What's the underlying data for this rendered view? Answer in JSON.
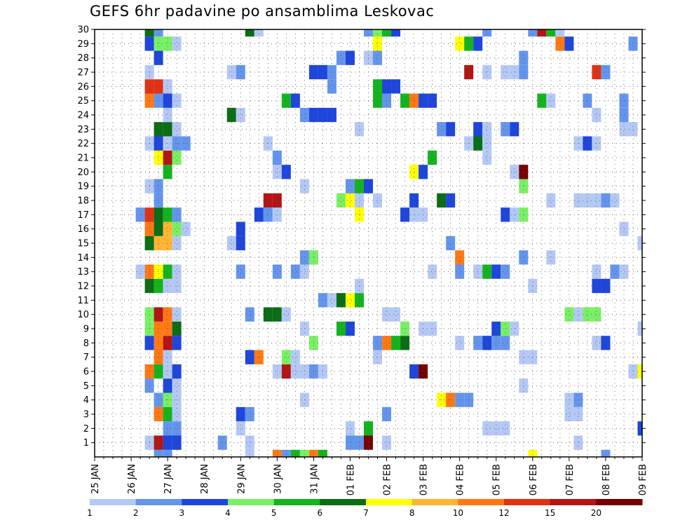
{
  "chart_data": {
    "type": "heatmap",
    "title": "GEFS 6hr padavine po ansamblima Leskovac",
    "xlabel": "",
    "ylabel": "",
    "x_ticks": [
      "25 JAN",
      "26 JAN",
      "27 JAN",
      "28 JAN",
      "29 JAN",
      "30 JAN",
      "31 JAN",
      "01 FEB",
      "02 FEB",
      "03 FEB",
      "04 FEB",
      "05 FEB",
      "06 FEB",
      "07 FEB",
      "08 FEB",
      "09 FEB"
    ],
    "y_ticks": [
      1,
      2,
      3,
      4,
      5,
      6,
      7,
      8,
      9,
      10,
      11,
      12,
      13,
      14,
      15,
      16,
      17,
      18,
      19,
      20,
      21,
      22,
      23,
      24,
      25,
      26,
      27,
      28,
      29,
      30
    ],
    "xlim_steps": [
      0,
      60
    ],
    "ylim": [
      0,
      30
    ],
    "grid": true,
    "colorbar": {
      "thresholds": [
        1,
        2,
        3,
        4,
        5,
        6,
        7,
        8,
        10,
        12,
        15,
        20
      ],
      "labels": [
        "1",
        "2",
        "3",
        "4",
        "5",
        "6",
        "7",
        "8",
        "10",
        "12",
        "15",
        "20"
      ],
      "colors": [
        "#b4c8f5",
        "#6495ed",
        "#1e46dc",
        "#78f064",
        "#14b41e",
        "#0a6e14",
        "#ffff00",
        "#ffb432",
        "#ff7814",
        "#e13214",
        "#b41414",
        "#780000"
      ]
    },
    "cells_note": "each cell is [time step (6h steps from 25 JAN 00Z), member, color class 1-12]",
    "cells": [
      [
        6,
        1,
        1
      ],
      [
        7,
        1,
        11
      ],
      [
        8,
        1,
        3
      ],
      [
        9,
        1,
        3
      ],
      [
        14,
        1,
        2
      ],
      [
        17,
        1,
        1
      ],
      [
        28,
        1,
        2
      ],
      [
        29,
        1,
        2
      ],
      [
        30,
        1,
        12
      ],
      [
        32,
        1,
        1
      ],
      [
        53,
        1,
        1
      ],
      [
        8,
        2,
        2
      ],
      [
        9,
        2,
        2
      ],
      [
        16,
        2,
        1
      ],
      [
        28,
        2,
        1
      ],
      [
        30,
        2,
        5
      ],
      [
        43,
        2,
        1
      ],
      [
        44,
        2,
        1
      ],
      [
        45,
        2,
        1
      ],
      [
        60,
        2,
        3
      ],
      [
        7,
        3,
        9
      ],
      [
        8,
        3,
        5
      ],
      [
        9,
        3,
        1
      ],
      [
        16,
        3,
        3
      ],
      [
        17,
        3,
        2
      ],
      [
        32,
        3,
        2
      ],
      [
        52,
        3,
        1
      ],
      [
        53,
        3,
        1
      ],
      [
        7,
        4,
        2
      ],
      [
        8,
        4,
        4
      ],
      [
        9,
        4,
        1
      ],
      [
        23,
        4,
        1
      ],
      [
        38,
        4,
        7
      ],
      [
        39,
        4,
        9
      ],
      [
        40,
        4,
        2
      ],
      [
        41,
        4,
        2
      ],
      [
        52,
        4,
        1
      ],
      [
        53,
        4,
        2
      ],
      [
        6,
        5,
        2
      ],
      [
        8,
        5,
        3
      ],
      [
        9,
        5,
        1
      ],
      [
        47,
        5,
        1
      ],
      [
        6,
        6,
        9
      ],
      [
        7,
        6,
        5
      ],
      [
        8,
        6,
        1
      ],
      [
        9,
        6,
        3
      ],
      [
        20,
        6,
        1
      ],
      [
        21,
        6,
        11
      ],
      [
        22,
        6,
        1
      ],
      [
        23,
        6,
        1
      ],
      [
        24,
        6,
        2
      ],
      [
        25,
        6,
        1
      ],
      [
        35,
        6,
        3
      ],
      [
        36,
        6,
        12
      ],
      [
        59,
        6,
        1
      ],
      [
        60,
        6,
        7
      ],
      [
        7,
        7,
        9
      ],
      [
        8,
        7,
        1
      ],
      [
        17,
        7,
        3
      ],
      [
        18,
        7,
        9
      ],
      [
        21,
        7,
        4
      ],
      [
        22,
        7,
        1
      ],
      [
        31,
        7,
        1
      ],
      [
        47,
        7,
        1
      ],
      [
        48,
        7,
        1
      ],
      [
        6,
        8,
        3
      ],
      [
        7,
        8,
        9
      ],
      [
        8,
        8,
        11
      ],
      [
        9,
        8,
        3
      ],
      [
        24,
        8,
        4
      ],
      [
        31,
        8,
        2
      ],
      [
        32,
        8,
        9
      ],
      [
        33,
        8,
        5
      ],
      [
        34,
        8,
        6
      ],
      [
        40,
        8,
        1
      ],
      [
        42,
        8,
        2
      ],
      [
        43,
        8,
        3
      ],
      [
        44,
        8,
        2
      ],
      [
        45,
        8,
        2
      ],
      [
        55,
        8,
        1
      ],
      [
        56,
        8,
        3
      ],
      [
        6,
        9,
        4
      ],
      [
        7,
        9,
        9
      ],
      [
        8,
        9,
        9
      ],
      [
        9,
        9,
        6
      ],
      [
        23,
        9,
        1
      ],
      [
        27,
        9,
        5
      ],
      [
        28,
        9,
        3
      ],
      [
        34,
        9,
        4
      ],
      [
        36,
        9,
        1
      ],
      [
        37,
        9,
        1
      ],
      [
        44,
        9,
        3
      ],
      [
        45,
        9,
        4
      ],
      [
        46,
        9,
        1
      ],
      [
        60,
        9,
        1
      ],
      [
        6,
        10,
        4
      ],
      [
        7,
        10,
        11
      ],
      [
        8,
        10,
        9
      ],
      [
        9,
        10,
        1
      ],
      [
        17,
        10,
        2
      ],
      [
        19,
        10,
        6
      ],
      [
        20,
        10,
        6
      ],
      [
        21,
        10,
        1
      ],
      [
        32,
        10,
        1
      ],
      [
        33,
        10,
        1
      ],
      [
        52,
        10,
        4
      ],
      [
        53,
        10,
        1
      ],
      [
        54,
        10,
        4
      ],
      [
        55,
        10,
        4
      ],
      [
        25,
        11,
        2
      ],
      [
        26,
        11,
        1
      ],
      [
        27,
        11,
        6
      ],
      [
        28,
        11,
        7
      ],
      [
        29,
        11,
        5
      ],
      [
        6,
        12,
        6
      ],
      [
        7,
        12,
        5
      ],
      [
        8,
        12,
        1
      ],
      [
        9,
        12,
        1
      ],
      [
        29,
        12,
        1
      ],
      [
        48,
        12,
        1
      ],
      [
        55,
        12,
        3
      ],
      [
        56,
        12,
        3
      ],
      [
        5,
        13,
        1
      ],
      [
        6,
        13,
        9
      ],
      [
        7,
        13,
        7
      ],
      [
        8,
        13,
        5
      ],
      [
        9,
        13,
        1
      ],
      [
        16,
        13,
        2
      ],
      [
        20,
        13,
        2
      ],
      [
        22,
        13,
        2
      ],
      [
        23,
        13,
        1
      ],
      [
        37,
        13,
        1
      ],
      [
        40,
        13,
        2
      ],
      [
        42,
        13,
        1
      ],
      [
        43,
        13,
        5
      ],
      [
        44,
        13,
        3
      ],
      [
        45,
        13,
        2
      ],
      [
        55,
        13,
        1
      ],
      [
        57,
        13,
        2
      ],
      [
        58,
        13,
        1
      ],
      [
        23,
        14,
        2
      ],
      [
        24,
        14,
        4
      ],
      [
        40,
        14,
        9
      ],
      [
        47,
        14,
        2
      ],
      [
        50,
        14,
        1
      ],
      [
        6,
        15,
        6
      ],
      [
        7,
        15,
        8
      ],
      [
        8,
        15,
        8
      ],
      [
        9,
        15,
        1
      ],
      [
        15,
        15,
        1
      ],
      [
        16,
        15,
        3
      ],
      [
        39,
        15,
        2
      ],
      [
        60,
        15,
        1
      ],
      [
        6,
        16,
        9
      ],
      [
        7,
        16,
        6
      ],
      [
        8,
        16,
        8
      ],
      [
        9,
        16,
        4
      ],
      [
        10,
        16,
        1
      ],
      [
        16,
        16,
        3
      ],
      [
        58,
        16,
        1
      ],
      [
        5,
        17,
        2
      ],
      [
        6,
        17,
        10
      ],
      [
        7,
        17,
        6
      ],
      [
        8,
        17,
        5
      ],
      [
        9,
        17,
        2
      ],
      [
        18,
        17,
        3
      ],
      [
        19,
        17,
        2
      ],
      [
        20,
        17,
        1
      ],
      [
        29,
        17,
        7
      ],
      [
        34,
        17,
        3
      ],
      [
        35,
        17,
        1
      ],
      [
        36,
        17,
        1
      ],
      [
        45,
        17,
        3
      ],
      [
        46,
        17,
        1
      ],
      [
        47,
        17,
        4
      ],
      [
        7,
        18,
        2
      ],
      [
        19,
        18,
        11
      ],
      [
        20,
        18,
        11
      ],
      [
        27,
        18,
        4
      ],
      [
        28,
        18,
        7
      ],
      [
        29,
        18,
        1
      ],
      [
        31,
        18,
        1
      ],
      [
        35,
        18,
        3
      ],
      [
        38,
        18,
        6
      ],
      [
        39,
        18,
        3
      ],
      [
        50,
        18,
        1
      ],
      [
        53,
        18,
        1
      ],
      [
        54,
        18,
        1
      ],
      [
        55,
        18,
        1
      ],
      [
        56,
        18,
        2
      ],
      [
        57,
        18,
        1
      ],
      [
        6,
        19,
        1
      ],
      [
        7,
        19,
        2
      ],
      [
        23,
        19,
        1
      ],
      [
        28,
        19,
        2
      ],
      [
        29,
        19,
        5
      ],
      [
        30,
        19,
        3
      ],
      [
        47,
        19,
        4
      ],
      [
        8,
        20,
        5
      ],
      [
        20,
        20,
        1
      ],
      [
        21,
        20,
        3
      ],
      [
        35,
        20,
        7
      ],
      [
        36,
        20,
        3
      ],
      [
        46,
        20,
        1
      ],
      [
        47,
        20,
        12
      ],
      [
        7,
        21,
        7
      ],
      [
        8,
        21,
        11
      ],
      [
        9,
        21,
        4
      ],
      [
        20,
        21,
        2
      ],
      [
        37,
        21,
        5
      ],
      [
        43,
        21,
        1
      ],
      [
        6,
        22,
        1
      ],
      [
        7,
        22,
        3
      ],
      [
        8,
        22,
        1
      ],
      [
        9,
        22,
        2
      ],
      [
        10,
        22,
        2
      ],
      [
        19,
        22,
        1
      ],
      [
        41,
        22,
        1
      ],
      [
        42,
        22,
        6
      ],
      [
        43,
        22,
        1
      ],
      [
        53,
        22,
        1
      ],
      [
        54,
        22,
        3
      ],
      [
        55,
        22,
        1
      ],
      [
        7,
        23,
        6
      ],
      [
        8,
        23,
        6
      ],
      [
        9,
        23,
        1
      ],
      [
        29,
        23,
        1
      ],
      [
        38,
        23,
        2
      ],
      [
        39,
        23,
        3
      ],
      [
        42,
        23,
        3
      ],
      [
        43,
        23,
        1
      ],
      [
        45,
        23,
        2
      ],
      [
        46,
        23,
        3
      ],
      [
        58,
        23,
        1
      ],
      [
        59,
        23,
        1
      ],
      [
        8,
        24,
        1
      ],
      [
        15,
        24,
        6
      ],
      [
        16,
        24,
        1
      ],
      [
        23,
        24,
        2
      ],
      [
        24,
        24,
        3
      ],
      [
        25,
        24,
        3
      ],
      [
        26,
        24,
        3
      ],
      [
        55,
        24,
        1
      ],
      [
        58,
        24,
        2
      ],
      [
        6,
        25,
        9
      ],
      [
        7,
        25,
        2
      ],
      [
        8,
        25,
        3
      ],
      [
        9,
        25,
        1
      ],
      [
        21,
        25,
        5
      ],
      [
        22,
        25,
        3
      ],
      [
        31,
        25,
        5
      ],
      [
        32,
        25,
        2
      ],
      [
        34,
        25,
        5
      ],
      [
        35,
        25,
        9
      ],
      [
        36,
        25,
        3
      ],
      [
        37,
        25,
        3
      ],
      [
        49,
        25,
        5
      ],
      [
        50,
        25,
        1
      ],
      [
        54,
        25,
        2
      ],
      [
        58,
        25,
        2
      ],
      [
        6,
        26,
        10
      ],
      [
        7,
        26,
        10
      ],
      [
        8,
        26,
        1
      ],
      [
        26,
        26,
        2
      ],
      [
        31,
        26,
        5
      ],
      [
        32,
        26,
        3
      ],
      [
        33,
        26,
        3
      ],
      [
        6,
        27,
        1
      ],
      [
        15,
        27,
        1
      ],
      [
        16,
        27,
        2
      ],
      [
        24,
        27,
        3
      ],
      [
        25,
        27,
        3
      ],
      [
        26,
        27,
        2
      ],
      [
        41,
        27,
        11
      ],
      [
        43,
        27,
        1
      ],
      [
        45,
        27,
        1
      ],
      [
        46,
        27,
        1
      ],
      [
        47,
        27,
        2
      ],
      [
        55,
        27,
        10
      ],
      [
        56,
        27,
        2
      ],
      [
        7,
        28,
        3
      ],
      [
        27,
        28,
        2
      ],
      [
        28,
        28,
        3
      ],
      [
        30,
        28,
        1
      ],
      [
        31,
        28,
        2
      ],
      [
        47,
        28,
        2
      ],
      [
        6,
        29,
        3
      ],
      [
        7,
        29,
        4
      ],
      [
        8,
        29,
        4
      ],
      [
        9,
        29,
        1
      ],
      [
        31,
        29,
        7
      ],
      [
        40,
        29,
        7
      ],
      [
        41,
        29,
        5
      ],
      [
        42,
        29,
        3
      ],
      [
        51,
        29,
        9
      ],
      [
        52,
        29,
        3
      ],
      [
        59,
        29,
        2
      ],
      [
        6,
        30,
        6
      ],
      [
        7,
        30,
        2
      ],
      [
        17,
        30,
        6
      ],
      [
        18,
        30,
        1
      ],
      [
        30,
        30,
        2
      ],
      [
        31,
        30,
        4
      ],
      [
        32,
        30,
        5
      ],
      [
        33,
        30,
        3
      ],
      [
        43,
        30,
        2
      ],
      [
        48,
        30,
        2
      ],
      [
        49,
        30,
        11
      ],
      [
        50,
        30,
        5
      ],
      [
        51,
        30,
        1
      ],
      [
        7,
        0,
        2
      ],
      [
        8,
        0,
        2
      ],
      [
        17,
        0,
        1
      ],
      [
        20,
        0,
        9
      ],
      [
        21,
        0,
        2
      ],
      [
        22,
        0,
        5
      ],
      [
        23,
        0,
        4
      ],
      [
        24,
        0,
        9
      ],
      [
        25,
        0,
        5
      ],
      [
        48,
        0,
        7
      ],
      [
        56,
        0,
        2
      ]
    ]
  }
}
